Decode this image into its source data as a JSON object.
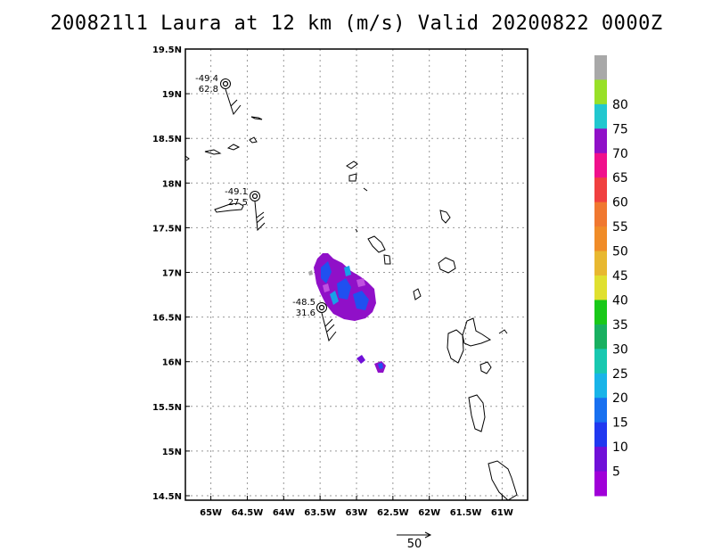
{
  "title": "200821l1 Laura at 12 km (m/s) Valid 20200822 0000Z",
  "map": {
    "lon_range": [
      -65.35,
      -60.65
    ],
    "lat_range": [
      14.45,
      19.5
    ],
    "x_ticks": [
      "65W",
      "64.5W",
      "64W",
      "63.5W",
      "63W",
      "62.5W",
      "62W",
      "61.5W",
      "61W"
    ],
    "y_ticks": [
      "19.5N",
      "19N",
      "18.5N",
      "18N",
      "17.5N",
      "17N",
      "16.5N",
      "16N",
      "15.5N",
      "15N",
      "14.5N"
    ],
    "grid": true
  },
  "colorbar": {
    "labels": [
      "80",
      "75",
      "70",
      "65",
      "60",
      "55",
      "50",
      "45",
      "40",
      "35",
      "30",
      "25",
      "20",
      "15",
      "10",
      "5"
    ],
    "colors": [
      "#a8a8a8",
      "#98e028",
      "#22c7cf",
      "#9010c8",
      "#f0108c",
      "#f04040",
      "#f07830",
      "#f08c28",
      "#e8b830",
      "#e0e030",
      "#18c818",
      "#18b060",
      "#18c8b0",
      "#18b4e8",
      "#1870f0",
      "#2038f0",
      "#7010d8",
      "#a000d8"
    ]
  },
  "stations": [
    {
      "top": "-49.4",
      "bottom": "62.8"
    },
    {
      "top": "-49.1",
      "bottom": "27.5"
    },
    {
      "top": "-48.5",
      "bottom": "31.6"
    }
  ],
  "reference_vector": {
    "label": "50"
  }
}
